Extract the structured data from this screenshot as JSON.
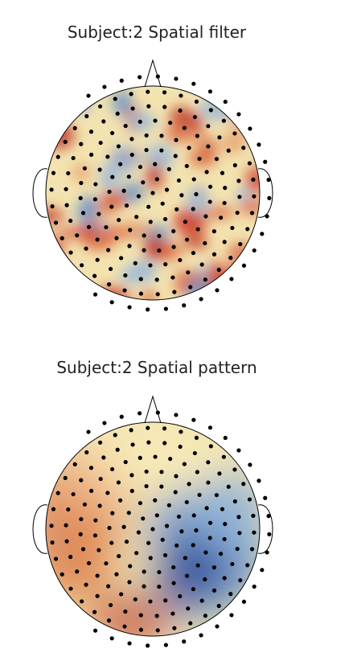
{
  "plots": [
    {
      "title": "Subject:2 Spatial filter"
    },
    {
      "title": "Subject:2 Spatial pattern"
    }
  ]
}
